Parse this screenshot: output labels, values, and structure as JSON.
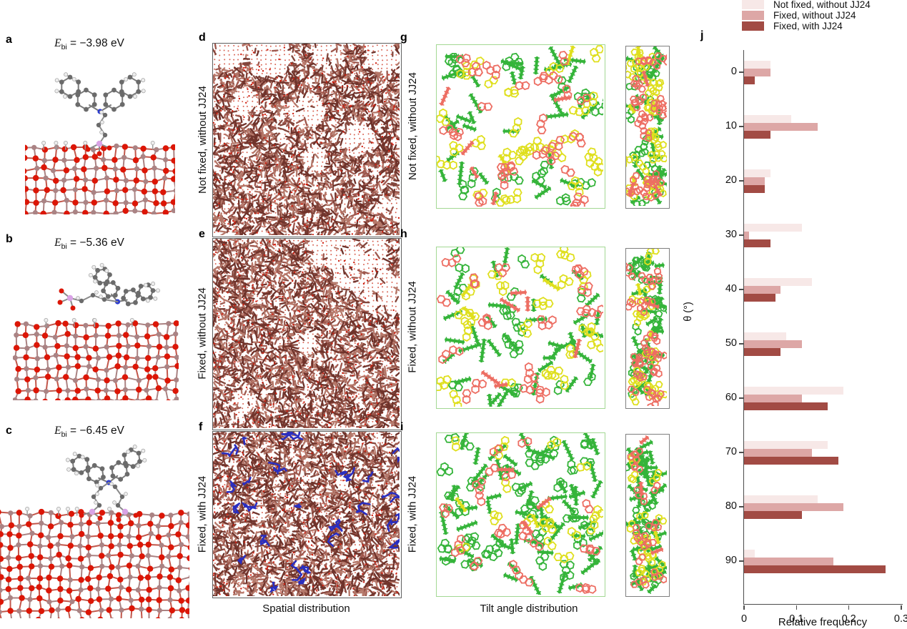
{
  "figure": {
    "panels_left": [
      {
        "letter": "a",
        "energy": {
          "sym": "E",
          "sub": "bi",
          "eq": " = −3.98 eV"
        }
      },
      {
        "letter": "b",
        "energy": {
          "sym": "E",
          "sub": "bi",
          "eq": " = −5.36 eV"
        }
      },
      {
        "letter": "c",
        "energy": {
          "sym": "E",
          "sub": "bi",
          "eq": " = −6.45 eV"
        }
      }
    ],
    "spatial_column": {
      "caption": "Spatial distribution",
      "panels": [
        {
          "letter": "d",
          "row_label": "Not fixed, without JJ24",
          "has_blue": false,
          "seed": 11
        },
        {
          "letter": "e",
          "row_label": "Fixed, without JJ24",
          "has_blue": false,
          "seed": 22
        },
        {
          "letter": "f",
          "row_label": "Fixed, with JJ24",
          "has_blue": true,
          "seed": 33
        }
      ]
    },
    "tilt_column": {
      "caption": "Tilt angle distribution",
      "panels": [
        {
          "letter": "g",
          "row_label": "Not fixed, without JJ24",
          "seed": 44,
          "mix": {
            "green": 0.4,
            "yellow": 0.34,
            "red": 0.26
          }
        },
        {
          "letter": "h",
          "row_label": "Fixed, without JJ24",
          "seed": 55,
          "mix": {
            "green": 0.5,
            "yellow": 0.24,
            "red": 0.26
          }
        },
        {
          "letter": "i",
          "row_label": "Fixed, with JJ24",
          "seed": 66,
          "mix": {
            "green": 0.72,
            "yellow": 0.15,
            "red": 0.13
          }
        }
      ]
    },
    "chart_panel": {
      "letter": "j"
    }
  },
  "colors": {
    "stick_shades": [
      "#9e584e",
      "#83463c",
      "#b5786a",
      "#6f332b"
    ],
    "dot_grid": "rgba(205,60,40,0.8)",
    "dot_red": "#cf1f10",
    "chain_blue": "#2a2ec0",
    "mol_green": "#35b43a",
    "mol_yellow": "#dfdf1e",
    "mol_red": "#ed6e63",
    "border_green": "#a3d893",
    "border_gray": "#7f7f7f",
    "atom_gray": "#6b6b6b",
    "atom_white": "#ededed",
    "atom_red": "#dc1606",
    "atom_si": "#aa8384",
    "atom_n": "#2b3bd0",
    "atom_p": "#d9a3e6",
    "slab_stick_red": "#c2564a",
    "slab_stick_si": "#ab8282",
    "axis": "#4c4c4c"
  },
  "chart_data": {
    "type": "bar",
    "orientation": "horizontal",
    "title": "",
    "xlabel": "Relative frequency",
    "ylabel": "θ (°)",
    "xlim": [
      0,
      0.3
    ],
    "xticks": [
      0,
      0.1,
      0.2,
      0.3
    ],
    "categories": [
      0,
      10,
      20,
      30,
      40,
      50,
      60,
      70,
      80,
      90
    ],
    "grid": false,
    "legend_position": "top-right",
    "series": [
      {
        "name": "Not fixed, without JJ24",
        "color": "#f7e8e7",
        "values": [
          0.05,
          0.09,
          0.05,
          0.11,
          0.13,
          0.08,
          0.19,
          0.16,
          0.14,
          0.02
        ]
      },
      {
        "name": "Fixed, without JJ24",
        "color": "#dda7a6",
        "values": [
          0.05,
          0.14,
          0.04,
          0.01,
          0.07,
          0.11,
          0.11,
          0.13,
          0.19,
          0.17
        ]
      },
      {
        "name": "Fixed, with JJ24",
        "color": "#a24b44",
        "values": [
          0.02,
          0.05,
          0.04,
          0.05,
          0.06,
          0.07,
          0.16,
          0.18,
          0.11,
          0.27
        ]
      }
    ]
  }
}
